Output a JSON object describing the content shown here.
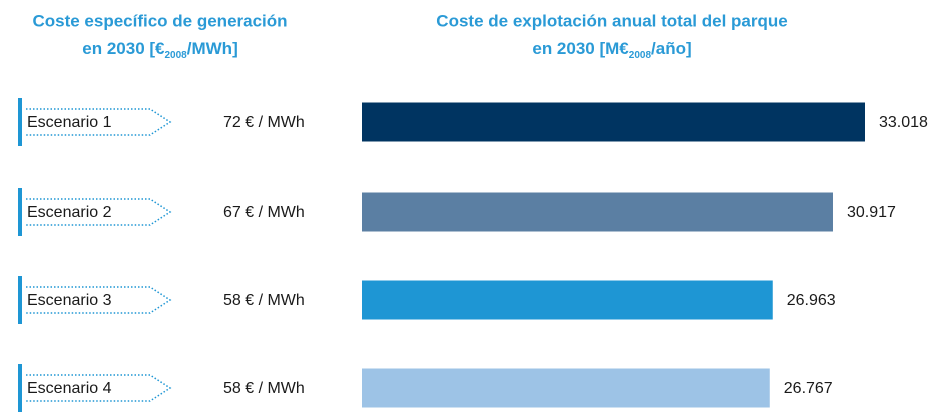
{
  "chart_data": {
    "type": "bar",
    "left_title": {
      "line1": "Coste específico de generación",
      "line2_start": "en 2030 [€",
      "line2_sub": "2008",
      "line2_end": "/MWh]"
    },
    "right_title": {
      "line1": "Coste de explotación anual total del parque",
      "line2_start": "en 2030 [M€",
      "line2_sub": "2008",
      "line2_end": "/año]"
    },
    "categories": [
      "Escenario 1",
      "Escenario 2",
      "Escenario 3",
      "Escenario 4"
    ],
    "cost_labels": [
      "72 € / MWh",
      "67 € / MWh",
      "58 € / MWh",
      "58 € / MWh"
    ],
    "values": [
      33018,
      30917,
      26963,
      26767
    ],
    "value_labels": [
      "33.018",
      "30.917",
      "26.963",
      "26.767"
    ],
    "colors": [
      "#003461",
      "#5b7fa3",
      "#1e96d4",
      "#9dc3e6"
    ]
  }
}
